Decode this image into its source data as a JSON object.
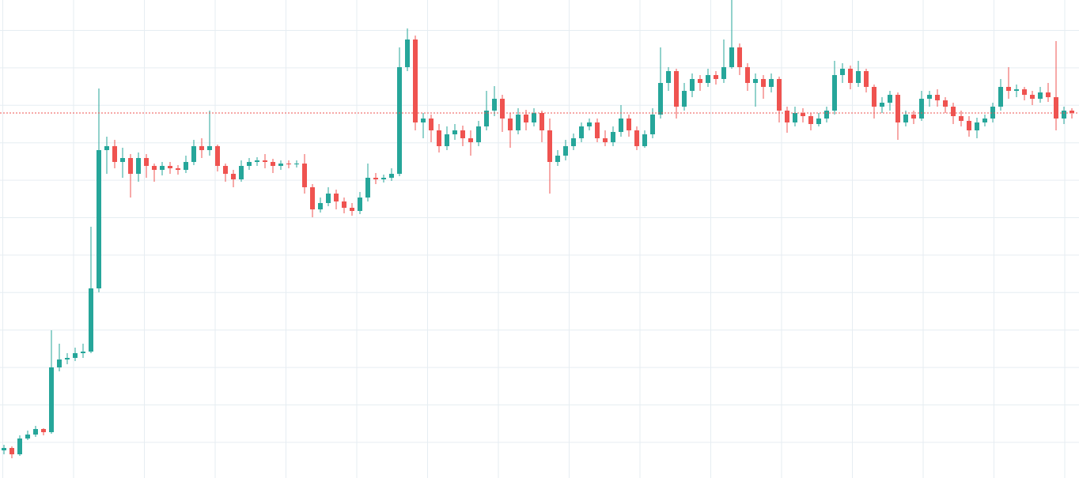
{
  "chart_data": {
    "type": "candlestick",
    "up_color": "#26a69a",
    "down_color": "#ef5350",
    "ylim": [
      0,
      605
    ],
    "grid": true,
    "price_line": 462,
    "price_line_color": "#ef5350",
    "ohlc": [
      [
        35,
        42,
        30,
        38
      ],
      [
        38,
        40,
        25,
        30
      ],
      [
        30,
        54,
        28,
        50
      ],
      [
        50,
        60,
        48,
        55
      ],
      [
        55,
        66,
        52,
        62
      ],
      [
        62,
        63,
        54,
        58
      ],
      [
        58,
        187,
        56,
        140
      ],
      [
        140,
        170,
        135,
        150
      ],
      [
        150,
        158,
        144,
        152
      ],
      [
        152,
        165,
        148,
        158
      ],
      [
        158,
        170,
        152,
        160
      ],
      [
        160,
        318,
        158,
        240
      ],
      [
        240,
        493,
        235,
        415
      ],
      [
        415,
        432,
        385,
        420
      ],
      [
        420,
        428,
        392,
        400
      ],
      [
        400,
        418,
        380,
        405
      ],
      [
        405,
        410,
        355,
        385
      ],
      [
        385,
        412,
        375,
        405
      ],
      [
        405,
        410,
        380,
        395
      ],
      [
        395,
        398,
        375,
        390
      ],
      [
        390,
        400,
        383,
        395
      ],
      [
        395,
        400,
        385,
        392
      ],
      [
        392,
        396,
        384,
        390
      ],
      [
        390,
        408,
        386,
        400
      ],
      [
        400,
        428,
        396,
        420
      ],
      [
        420,
        430,
        405,
        415
      ],
      [
        415,
        465,
        408,
        420
      ],
      [
        420,
        422,
        388,
        395
      ],
      [
        395,
        398,
        375,
        385
      ],
      [
        385,
        390,
        368,
        378
      ],
      [
        378,
        402,
        375,
        395
      ],
      [
        395,
        405,
        390,
        400
      ],
      [
        400,
        406,
        395,
        402
      ],
      [
        402,
        410,
        392,
        400
      ],
      [
        400,
        404,
        386,
        395
      ],
      [
        395,
        402,
        390,
        398
      ],
      [
        398,
        402,
        392,
        397
      ],
      [
        397,
        402,
        393,
        398
      ],
      [
        398,
        410,
        360,
        368
      ],
      [
        368,
        372,
        330,
        340
      ],
      [
        340,
        355,
        336,
        348
      ],
      [
        348,
        368,
        344,
        360
      ],
      [
        360,
        365,
        340,
        350
      ],
      [
        350,
        355,
        335,
        342
      ],
      [
        342,
        348,
        332,
        338
      ],
      [
        338,
        362,
        334,
        355
      ],
      [
        355,
        398,
        350,
        380
      ],
      [
        380,
        386,
        372,
        378
      ],
      [
        378,
        384,
        374,
        380
      ],
      [
        380,
        392,
        376,
        385
      ],
      [
        385,
        545,
        382,
        520
      ],
      [
        520,
        569,
        515,
        555
      ],
      [
        555,
        560,
        440,
        450
      ],
      [
        450,
        462,
        430,
        455
      ],
      [
        455,
        460,
        425,
        440
      ],
      [
        440,
        448,
        412,
        420
      ],
      [
        420,
        445,
        415,
        435
      ],
      [
        435,
        448,
        428,
        440
      ],
      [
        440,
        446,
        420,
        430
      ],
      [
        430,
        440,
        408,
        425
      ],
      [
        425,
        452,
        420,
        445
      ],
      [
        445,
        490,
        440,
        465
      ],
      [
        465,
        496,
        458,
        480
      ],
      [
        480,
        485,
        438,
        455
      ],
      [
        455,
        462,
        418,
        440
      ],
      [
        440,
        468,
        435,
        460
      ],
      [
        460,
        466,
        440,
        450
      ],
      [
        450,
        468,
        445,
        462
      ],
      [
        462,
        465,
        425,
        440
      ],
      [
        440,
        455,
        360,
        400
      ],
      [
        400,
        415,
        395,
        408
      ],
      [
        408,
        428,
        402,
        420
      ],
      [
        420,
        436,
        415,
        430
      ],
      [
        430,
        450,
        425,
        445
      ],
      [
        445,
        455,
        440,
        450
      ],
      [
        450,
        455,
        425,
        430
      ],
      [
        430,
        440,
        420,
        425
      ],
      [
        425,
        445,
        420,
        438
      ],
      [
        438,
        472,
        432,
        455
      ],
      [
        455,
        460,
        432,
        440
      ],
      [
        440,
        445,
        415,
        420
      ],
      [
        420,
        440,
        418,
        435
      ],
      [
        435,
        468,
        430,
        460
      ],
      [
        460,
        545,
        455,
        500
      ],
      [
        500,
        520,
        490,
        515
      ],
      [
        515,
        518,
        455,
        470
      ],
      [
        470,
        500,
        465,
        490
      ],
      [
        490,
        512,
        482,
        505
      ],
      [
        505,
        510,
        490,
        500
      ],
      [
        500,
        518,
        495,
        510
      ],
      [
        510,
        515,
        498,
        505
      ],
      [
        505,
        555,
        500,
        520
      ],
      [
        520,
        605,
        518,
        545
      ],
      [
        545,
        550,
        510,
        520
      ],
      [
        520,
        525,
        490,
        500
      ],
      [
        500,
        512,
        470,
        505
      ],
      [
        505,
        510,
        480,
        495
      ],
      [
        495,
        512,
        488,
        505
      ],
      [
        505,
        508,
        450,
        465
      ],
      [
        465,
        470,
        437,
        450
      ],
      [
        450,
        470,
        445,
        462
      ],
      [
        462,
        468,
        450,
        458
      ],
      [
        458,
        462,
        440,
        448
      ],
      [
        448,
        462,
        445,
        455
      ],
      [
        455,
        470,
        450,
        465
      ],
      [
        465,
        528,
        460,
        510
      ],
      [
        510,
        525,
        500,
        518
      ],
      [
        518,
        522,
        492,
        500
      ],
      [
        500,
        528,
        495,
        515
      ],
      [
        515,
        518,
        488,
        495
      ],
      [
        495,
        498,
        455,
        470
      ],
      [
        470,
        482,
        462,
        475
      ],
      [
        475,
        490,
        465,
        485
      ],
      [
        485,
        488,
        428,
        450
      ],
      [
        450,
        465,
        445,
        460
      ],
      [
        460,
        465,
        448,
        455
      ],
      [
        455,
        490,
        452,
        480
      ],
      [
        480,
        490,
        470,
        485
      ],
      [
        485,
        492,
        470,
        478
      ],
      [
        478,
        482,
        462,
        470
      ],
      [
        470,
        475,
        448,
        458
      ],
      [
        458,
        465,
        445,
        452
      ],
      [
        452,
        458,
        432,
        440
      ],
      [
        440,
        456,
        430,
        450
      ],
      [
        450,
        460,
        445,
        455
      ],
      [
        455,
        475,
        450,
        470
      ],
      [
        470,
        505,
        465,
        495
      ],
      [
        495,
        520,
        480,
        490
      ],
      [
        490,
        498,
        482,
        492
      ],
      [
        492,
        495,
        478,
        485
      ],
      [
        485,
        490,
        472,
        480
      ],
      [
        480,
        495,
        475,
        488
      ],
      [
        488,
        500,
        476,
        482
      ],
      [
        482,
        553,
        440,
        455
      ],
      [
        455,
        470,
        448,
        465
      ],
      [
        465,
        468,
        455,
        462
      ]
    ]
  }
}
